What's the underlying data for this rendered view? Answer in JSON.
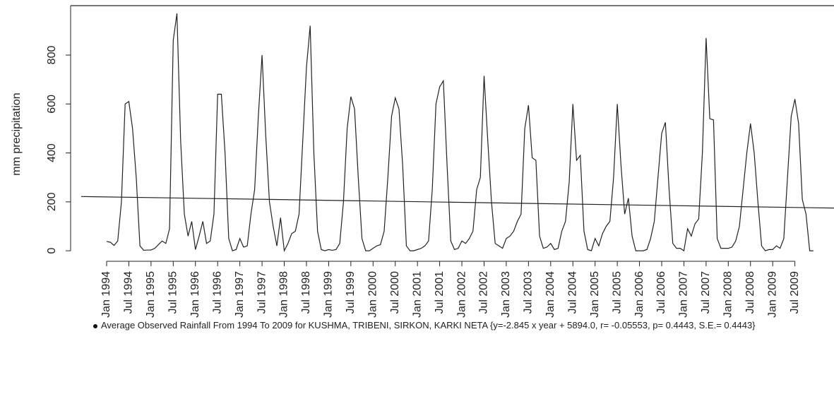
{
  "chart_data": {
    "type": "line",
    "y_label": "mm precipitation",
    "categories": [
      "Jan 1994",
      null,
      null,
      null,
      null,
      null,
      "Jul 1994",
      null,
      null,
      null,
      null,
      null,
      "Jan 1995",
      null,
      null,
      null,
      null,
      null,
      "Jul 1995",
      null,
      null,
      null,
      null,
      null,
      "Jan 1996",
      null,
      null,
      null,
      null,
      null,
      "Jul 1996",
      null,
      null,
      null,
      null,
      null,
      "Jan 1997",
      null,
      null,
      null,
      null,
      null,
      "Jul 1997",
      null,
      null,
      null,
      null,
      null,
      "Jan 1998",
      null,
      null,
      null,
      null,
      null,
      "Jul 1998",
      null,
      null,
      null,
      null,
      null,
      "Jan 1999",
      null,
      null,
      null,
      null,
      null,
      "Jul 1999",
      null,
      null,
      null,
      null,
      null,
      "Jan 2000",
      null,
      null,
      null,
      null,
      null,
      "Jul 2000",
      null,
      null,
      null,
      null,
      null,
      "Jan 2001",
      null,
      null,
      null,
      null,
      null,
      "Jul 2001",
      null,
      null,
      null,
      null,
      null,
      "Jan 2002",
      null,
      null,
      null,
      null,
      null,
      "Jul 2002",
      null,
      null,
      null,
      null,
      null,
      "Jan 2003",
      null,
      null,
      null,
      null,
      null,
      "Jul 2003",
      null,
      null,
      null,
      null,
      null,
      "Jan 2004",
      null,
      null,
      null,
      null,
      null,
      "Jul 2004",
      null,
      null,
      null,
      null,
      null,
      "Jan 2005",
      null,
      null,
      null,
      null,
      null,
      "Jul 2005",
      null,
      null,
      null,
      null,
      null,
      "Jan 2006",
      null,
      null,
      null,
      null,
      null,
      "Jul 2006",
      null,
      null,
      null,
      null,
      null,
      "Jan 2007",
      null,
      null,
      null,
      null,
      null,
      "Jul 2007",
      null,
      null,
      null,
      null,
      null,
      "Jan 2008",
      null,
      null,
      null,
      null,
      null,
      "Jul 2008",
      null,
      null,
      null,
      null,
      null,
      "Jan 2009",
      null,
      null,
      null,
      null,
      null,
      "Jul 2009",
      null,
      null,
      null,
      null,
      null
    ],
    "series": [
      {
        "name": "Average Observed Rainfall From 1994 To 2009 for KUSHMA, TRIBENI, SIRKON, KARKI NETA {y=-2.845 x year + 5894.0, r= -0.05553, p= 0.4443, S.E.= 0.4443}",
        "color": "#222222",
        "values": [
          38,
          35,
          22,
          40,
          200,
          600,
          610,
          500,
          300,
          20,
          2,
          3,
          3,
          10,
          25,
          40,
          30,
          90,
          860,
          970,
          450,
          150,
          60,
          120,
          5,
          60,
          120,
          30,
          40,
          150,
          640,
          640,
          400,
          50,
          0,
          5,
          50,
          15,
          20,
          150,
          250,
          550,
          800,
          470,
          200,
          100,
          20,
          135,
          0,
          30,
          70,
          80,
          150,
          450,
          750,
          920,
          400,
          80,
          5,
          0,
          5,
          2,
          5,
          30,
          200,
          500,
          630,
          580,
          300,
          50,
          0,
          0,
          10,
          20,
          25,
          80,
          300,
          550,
          625,
          580,
          350,
          20,
          0,
          0,
          5,
          10,
          20,
          40,
          250,
          600,
          670,
          695,
          350,
          40,
          5,
          10,
          40,
          30,
          50,
          80,
          250,
          300,
          715,
          450,
          200,
          30,
          20,
          10,
          50,
          60,
          80,
          120,
          150,
          500,
          595,
          380,
          370,
          60,
          10,
          15,
          30,
          5,
          10,
          80,
          120,
          280,
          600,
          370,
          390,
          80,
          5,
          0,
          50,
          20,
          70,
          100,
          120,
          300,
          600,
          350,
          150,
          215,
          60,
          0,
          0,
          0,
          5,
          50,
          120,
          300,
          480,
          525,
          250,
          30,
          10,
          10,
          0,
          90,
          60,
          110,
          130,
          400,
          870,
          540,
          535,
          50,
          10,
          10,
          10,
          15,
          40,
          100,
          250,
          400,
          520,
          400,
          200,
          20,
          0,
          5,
          5,
          20,
          10,
          50,
          300,
          550,
          620,
          520,
          210,
          150,
          0,
          0
        ]
      }
    ],
    "trend_values": [
      220.1,
      175.8
    ],
    "ylim": [
      -43,
      1002
    ],
    "yticks": [
      0,
      200,
      400,
      600,
      800
    ]
  }
}
